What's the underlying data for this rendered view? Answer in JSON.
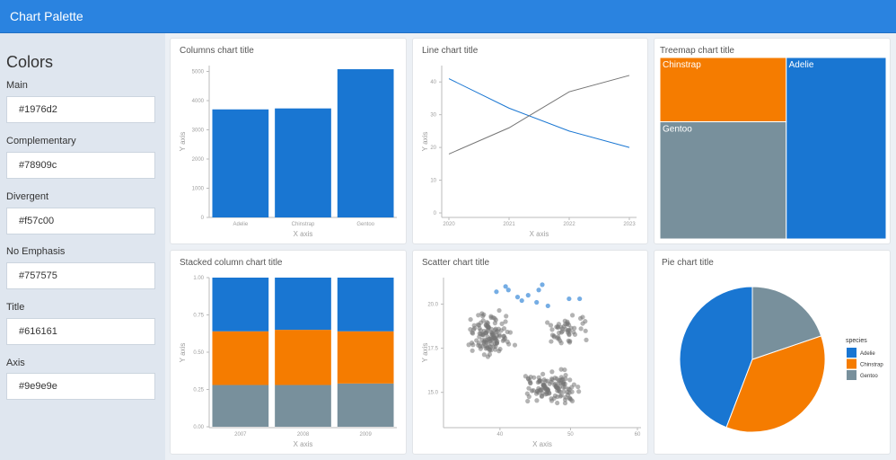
{
  "app": {
    "title": "Chart Palette"
  },
  "sidebar": {
    "heading": "Colors",
    "fields": [
      {
        "label": "Main",
        "value": "#1976d2"
      },
      {
        "label": "Complementary",
        "value": "#78909c"
      },
      {
        "label": "Divergent",
        "value": "#f57c00"
      },
      {
        "label": "No Emphasis",
        "value": "#757575"
      },
      {
        "label": "Title",
        "value": "#616161"
      },
      {
        "label": "Axis",
        "value": "#9e9e9e"
      }
    ]
  },
  "colors": {
    "main": "#1976d2",
    "complementary": "#78909c",
    "divergent": "#f57c00",
    "no_emphasis": "#757575",
    "title": "#616161",
    "axis": "#9e9e9e",
    "header": "#2a83e0"
  },
  "chart_data": [
    {
      "type": "bar",
      "title": "Columns chart title",
      "xlabel": "X axis",
      "ylabel": "Y axis",
      "categories": [
        "Adelie",
        "Chinstrap",
        "Gentoo"
      ],
      "values": [
        3700,
        3733,
        5076
      ],
      "ylim": [
        0,
        5200
      ],
      "yticks": [
        0,
        1000,
        2000,
        3000,
        4000,
        5000
      ]
    },
    {
      "type": "line",
      "title": "Line chart title",
      "xlabel": "X axis",
      "ylabel": "Y axis",
      "x": [
        2020,
        2021,
        2022,
        2023
      ],
      "series": [
        {
          "values": [
            41,
            32,
            25,
            20
          ],
          "color": "#1976d2"
        },
        {
          "values": [
            18,
            26,
            37,
            42
          ],
          "color": "#757575"
        }
      ],
      "ylim": [
        0,
        45
      ],
      "yticks": [
        0,
        10,
        20,
        30,
        40
      ]
    },
    {
      "type": "treemap",
      "title": "Treemap chart title",
      "categories": [
        "Adelie",
        "Chinstrap",
        "Gentoo"
      ],
      "values": [
        152,
        68,
        124
      ]
    },
    {
      "type": "bar",
      "stacked": true,
      "title": "Stacked column chart title",
      "xlabel": "X axis",
      "ylabel": "Y axis",
      "categories": [
        "2007",
        "2008",
        "2009"
      ],
      "series": [
        {
          "values": [
            0.28,
            0.28,
            0.29
          ],
          "color": "#78909c"
        },
        {
          "values": [
            0.36,
            0.37,
            0.35
          ],
          "color": "#f57c00"
        },
        {
          "values": [
            0.36,
            0.35,
            0.36
          ],
          "color": "#1976d2"
        }
      ],
      "ylim": [
        0,
        1
      ],
      "ytick_labels": [
        "0.00",
        "0.25",
        "0.50",
        "0.75",
        "1.00"
      ]
    },
    {
      "type": "scatter",
      "title": "Scatter chart title",
      "xlabel": "X axis",
      "ylabel": "Y axis",
      "xlim": [
        32,
        60
      ],
      "ylim": [
        13,
        21.5
      ],
      "xticks": [
        40,
        50
      ],
      "xtick_labels": [
        "40",
        "50"
      ],
      "xticks_extra": [
        60
      ],
      "yticks": [
        15,
        17.5,
        20
      ],
      "ytick_labels": [
        "15.0",
        "17.5",
        "20.0"
      ],
      "highlight": [
        [
          39.5,
          20.7
        ],
        [
          41.2,
          20.8
        ],
        [
          42.5,
          20.4
        ],
        [
          43.1,
          20.2
        ],
        [
          44.0,
          20.5
        ],
        [
          46.0,
          21.1
        ],
        [
          40.8,
          21.0
        ],
        [
          45.5,
          20.8
        ],
        [
          45.2,
          20.1
        ],
        [
          46.8,
          19.9
        ],
        [
          49.8,
          20.3
        ],
        [
          51.3,
          20.3
        ]
      ]
    },
    {
      "type": "pie",
      "title": "Pie chart title",
      "legend_title": "species",
      "categories": [
        "Adelie",
        "Chinstrap",
        "Gentoo"
      ],
      "values": [
        152,
        124,
        68
      ],
      "legend_position": "right"
    }
  ]
}
